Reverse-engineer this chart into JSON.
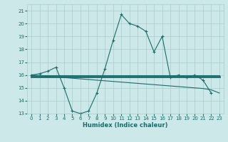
{
  "bg_color": "#cde8e8",
  "grid_color": "#aacccc",
  "line_color": "#1a6b6b",
  "x_label": "Humidex (Indice chaleur)",
  "ylim": [
    13,
    21.5
  ],
  "xlim": [
    -0.5,
    23.5
  ],
  "yticks": [
    13,
    14,
    15,
    16,
    17,
    18,
    19,
    20,
    21
  ],
  "xticks": [
    0,
    1,
    2,
    3,
    4,
    5,
    6,
    7,
    8,
    9,
    10,
    11,
    12,
    13,
    14,
    15,
    16,
    17,
    18,
    19,
    20,
    21,
    22,
    23
  ],
  "curve1_x": [
    0,
    1,
    2,
    3,
    4,
    5,
    6,
    7,
    8,
    9,
    10,
    11,
    12,
    13,
    14,
    15,
    16,
    17,
    18,
    19,
    20,
    21,
    22
  ],
  "curve1_y": [
    16.0,
    16.1,
    16.3,
    16.6,
    15.0,
    13.2,
    13.0,
    13.2,
    14.6,
    16.5,
    18.7,
    20.7,
    20.0,
    19.8,
    19.4,
    17.8,
    19.0,
    15.8,
    16.0,
    15.8,
    16.0,
    15.6,
    14.6
  ],
  "curve2_x": [
    0,
    1,
    2,
    3,
    4,
    5,
    6,
    7,
    8,
    9,
    10,
    11,
    12,
    13,
    14,
    15,
    16,
    17,
    18,
    19,
    20,
    21,
    22,
    23
  ],
  "curve2_y": [
    16.0,
    15.95,
    15.9,
    15.85,
    15.8,
    15.75,
    15.7,
    15.65,
    15.6,
    15.55,
    15.5,
    15.45,
    15.4,
    15.35,
    15.3,
    15.25,
    15.2,
    15.15,
    15.1,
    15.05,
    15.0,
    14.95,
    14.85,
    14.6
  ],
  "curve3_x": [
    0,
    23
  ],
  "curve3_y": [
    15.85,
    15.85
  ],
  "curve4_x": [
    0,
    23
  ],
  "curve4_y": [
    16.0,
    16.0
  ]
}
